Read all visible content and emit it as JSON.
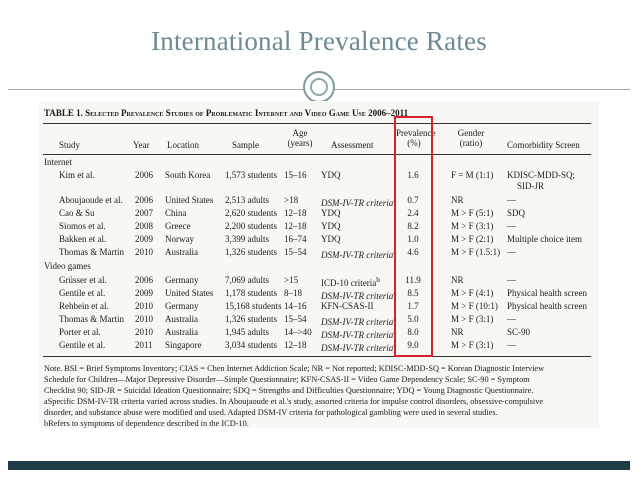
{
  "slide": {
    "title": "International Prevalence Rates"
  },
  "table": {
    "caption_label": "TABLE 1.",
    "caption_text": "Selected Prevalence Studies of Problematic Internet and Video Game Use 2006–2011",
    "headers": {
      "study": "Study",
      "year": "Year",
      "location": "Location",
      "sample": "Sample",
      "age": "Age",
      "age_unit": "(years)",
      "assessment": "Assessment",
      "prevalence": "Prevalence",
      "prevalence_unit": "(%)",
      "gender": "Gender",
      "gender_unit": "(ratio)",
      "comorbidity": "Comorbidity Screen"
    },
    "groups": [
      {
        "label": "Internet",
        "rows": [
          {
            "study": "Kim et al.",
            "year": "2006",
            "location": "South Korea",
            "sample": "1,573 students",
            "age": "15–16",
            "assessment": "YDQ",
            "prevalence": "1.6",
            "gender": "F = M (1:1)",
            "comorbidity": "KDISC-MDD-SQ;",
            "comorbidity2": "SID-JR"
          },
          {
            "study": "Aboujaoude et al.",
            "year": "2006",
            "location": "United States",
            "sample": "2,513 adults",
            "age": ">18",
            "assessment": "DSM-IV-TR criteria",
            "note": "a",
            "prevalence": "0.7",
            "gender": "NR",
            "comorbidity": "—"
          },
          {
            "study": "Cao & Su",
            "year": "2007",
            "location": "China",
            "sample": "2,620 students",
            "age": "12–18",
            "assessment": "YDQ",
            "prevalence": "2.4",
            "gender": "M > F (5:1)",
            "comorbidity": "SDQ"
          },
          {
            "study": "Siomos et al.",
            "year": "2008",
            "location": "Greece",
            "sample": "2,200 students",
            "age": "12–18",
            "assessment": "YDQ",
            "prevalence": "8.2",
            "gender": "M > F (3:1)",
            "comorbidity": "—"
          },
          {
            "study": "Bakken et al.",
            "year": "2009",
            "location": "Norway",
            "sample": "3,399 adults",
            "age": "16–74",
            "assessment": "YDQ",
            "prevalence": "1.0",
            "gender": "M > F (2:1)",
            "comorbidity": "Multiple choice item"
          },
          {
            "study": "Thomas & Martin",
            "year": "2010",
            "location": "Australia",
            "sample": "1,326 students",
            "age": "15–54",
            "assessment": "DSM-IV-TR criteria",
            "note": "a",
            "prevalence": "4.6",
            "gender": "M > F (1.5:1)",
            "comorbidity": "—"
          }
        ]
      },
      {
        "label": "Video games",
        "rows": [
          {
            "study": "Grüsser et al.",
            "year": "2006",
            "location": "Germany",
            "sample": "7,069 adults",
            "age": ">15",
            "assessment": "ICD-10 criteria",
            "note": "b",
            "prevalence": "11.9",
            "gender": "NR",
            "comorbidity": "—"
          },
          {
            "study": "Gentile et al.",
            "year": "2009",
            "location": "United States",
            "sample": "1,178 students",
            "age": "8–18",
            "assessment": "DSM-IV-TR criteria",
            "note": "a",
            "prevalence": "8.5",
            "gender": "M > F (4:1)",
            "comorbidity": "Physical health screen"
          },
          {
            "study": "Rehbein et al.",
            "year": "2010",
            "location": "Germany",
            "sample": "15,168 students",
            "age": "14–16",
            "assessment": "KFN-CSAS-II",
            "prevalence": "1.7",
            "gender": "M > F (10:1)",
            "comorbidity": "Physical health screen"
          },
          {
            "study": "Thomas & Martin",
            "year": "2010",
            "location": "Australia",
            "sample": "1,326 students",
            "age": "15–54",
            "assessment": "DSM-IV-TR criteria",
            "note": "a",
            "prevalence": "5.0",
            "gender": "M > F (3:1)",
            "comorbidity": "—"
          },
          {
            "study": "Porter et al.",
            "year": "2010",
            "location": "Australia",
            "sample": "1,945 adults",
            "age": "14–>40",
            "assessment": "DSM-IV-TR criteria",
            "note": "a",
            "prevalence": "8.0",
            "gender": "NR",
            "comorbidity": "SC-90"
          },
          {
            "study": "Gentile et al.",
            "year": "2011",
            "location": "Singapore",
            "sample": "3,034 students",
            "age": "12–18",
            "assessment": "DSM-IV-TR criteria",
            "note": "a",
            "prevalence": "9.0",
            "gender": "M > F (3:1)",
            "comorbidity": "—"
          }
        ]
      }
    ],
    "notes": [
      "Note. BSI = Brief Symptoms Inventory; CIAS = Chen Internet Addiction Scale; NR = Not reported; KDISC-MDD-SQ = Korean Diagnostic Interview",
      "Schedule for Children—Major Depressive Disorder—Simple Questionnaire; KFN-CSAS-II = Video Game Dependency Scale; SC-90 = Symptom",
      "Checklist 90; SID-JR = Suicidal Ideation Questionnaire; SDQ = Strengths and Difficulties Questionnaire; YDQ = Young Diagnostic Questionnaire.",
      "aSpecific DSM-IV-TR criteria varied across studies. In Aboujaoude et al.'s study, assorted criteria for impulse control disorders, obsessive-compulsive",
      "disorder, and substance abuse were modified and used. Adapted DSM-IV criteria for pathological gambling were used in several studies.",
      "bRefers to symptoms of dependence described in the ICD-10."
    ]
  },
  "colors": {
    "title": "#6b8a95",
    "highlight": "#d4232a",
    "bar": "#1f3b47"
  }
}
